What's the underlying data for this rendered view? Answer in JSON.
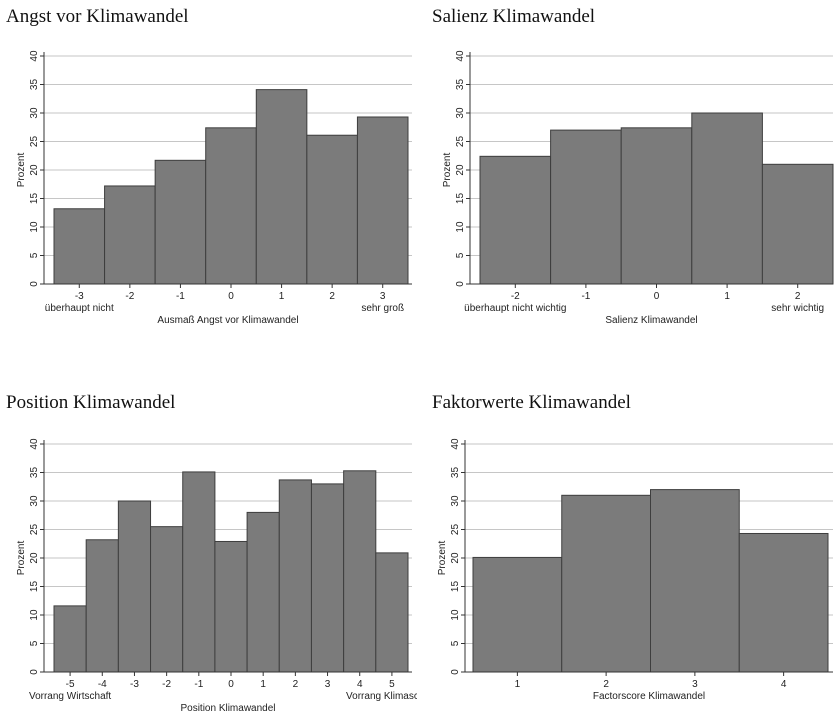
{
  "chart_data": [
    {
      "type": "bar",
      "title": "Angst vor Klimawandel",
      "xlabel": "Ausmaß Angst vor Klimawandel",
      "ylabel": "Prozent",
      "categories": [
        "-3",
        "-2",
        "-1",
        "0",
        "1",
        "2",
        "3"
      ],
      "values": [
        13.2,
        17.2,
        21.7,
        27.4,
        34.1,
        26.1,
        29.3
      ],
      "ylim": [
        0,
        40
      ],
      "yticks": [
        "0",
        "5",
        "10",
        "15",
        "20",
        "25",
        "30",
        "35",
        "40"
      ],
      "xticks": [
        "-3",
        "-2",
        "-1",
        "0",
        "1",
        "2",
        "3"
      ],
      "x_extra_labels": [
        "überhaupt nicht",
        "sehr groß"
      ],
      "grid": true
    },
    {
      "type": "bar",
      "title": "Salienz Klimawandel",
      "xlabel": "Salienz Klimawandel",
      "ylabel": "Prozent",
      "categories": [
        "-2",
        "-1",
        "0",
        "1",
        "2"
      ],
      "values": [
        22.4,
        27.0,
        27.4,
        30.0,
        21.0
      ],
      "ylim": [
        0,
        40
      ],
      "yticks": [
        "0",
        "5",
        "10",
        "15",
        "20",
        "25",
        "30",
        "35",
        "40"
      ],
      "xticks": [
        "-2",
        "-1",
        "0",
        "1",
        "2"
      ],
      "x_extra_labels": [
        "überhaupt nicht wichtig",
        "sehr wichtig"
      ],
      "grid": true
    },
    {
      "type": "bar",
      "title": "Position Klimawandel",
      "xlabel": "Position Klimawandel",
      "ylabel": "Prozent",
      "categories": [
        "-5",
        "-4",
        "-3",
        "-2",
        "-1",
        "0",
        "1",
        "2",
        "3",
        "4",
        "5"
      ],
      "values": [
        11.6,
        23.2,
        30.0,
        25.5,
        35.1,
        22.9,
        28.0,
        33.7,
        33.0,
        35.3,
        20.9
      ],
      "ylim": [
        0,
        40
      ],
      "yticks": [
        "0",
        "5",
        "10",
        "15",
        "20",
        "25",
        "30",
        "35",
        "40"
      ],
      "xticks": [
        "-5",
        "-4",
        "-3",
        "-2",
        "-1",
        "0",
        "1",
        "2",
        "3",
        "4",
        "5"
      ],
      "x_extra_labels": [
        "Vorrang Wirtschaft",
        "Vorrang Klimaschutz"
      ],
      "grid": true
    },
    {
      "type": "bar",
      "title": "Faktorwerte Klimawandel",
      "xlabel": "Factorscore Klimawandel",
      "ylabel": "Prozent",
      "categories": [
        "1",
        "2",
        "3",
        "4"
      ],
      "values": [
        20.1,
        31.0,
        32.0,
        24.3
      ],
      "ylim": [
        0,
        40
      ],
      "yticks": [
        "0",
        "5",
        "10",
        "15",
        "20",
        "25",
        "30",
        "35",
        "40"
      ],
      "xticks": [
        "1",
        "2",
        "3",
        "4"
      ],
      "x_extra_labels": [],
      "grid": true
    }
  ]
}
